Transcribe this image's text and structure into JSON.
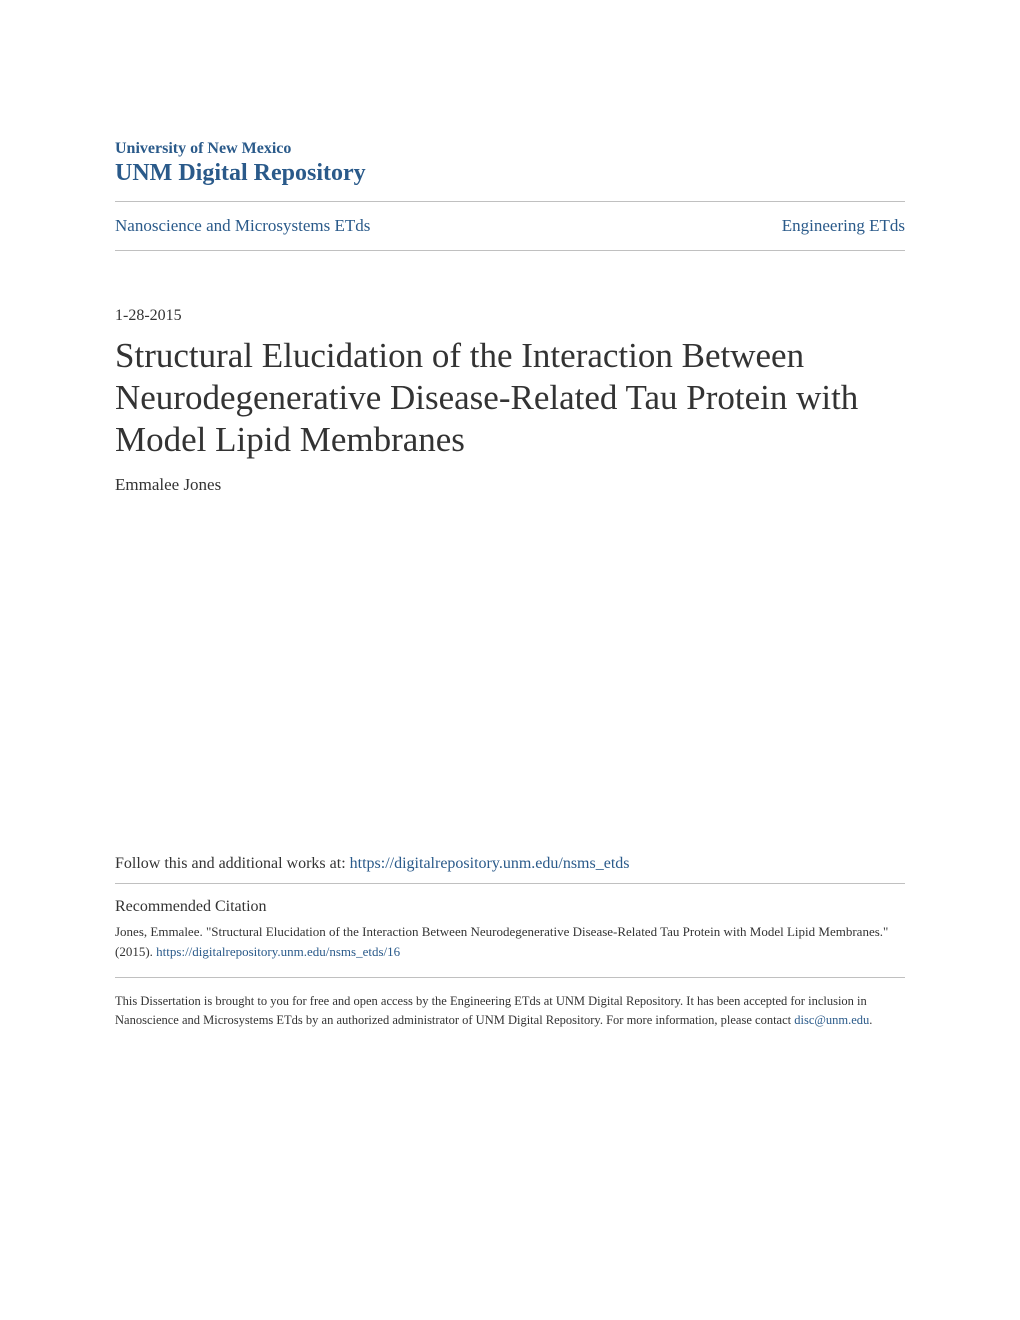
{
  "header": {
    "institution": "University of New Mexico",
    "repository": "UNM Digital Repository"
  },
  "breadcrumb": {
    "left_link": "Nanoscience and Microsystems ETds",
    "right_link": "Engineering ETds"
  },
  "document": {
    "date": "1-28-2015",
    "title": "Structural Elucidation of the Interaction Between Neurodegenerative Disease-Related Tau Protein with Model Lipid Membranes",
    "author": "Emmalee Jones"
  },
  "follow": {
    "prefix": "Follow this and additional works at: ",
    "url": "https://digitalrepository.unm.edu/nsms_etds"
  },
  "citation": {
    "heading": "Recommended Citation",
    "text_prefix": "Jones, Emmalee. \"Structural Elucidation of the Interaction Between Neurodegenerative Disease-Related Tau Protein with Model Lipid Membranes.\" (2015). ",
    "url": "https://digitalrepository.unm.edu/nsms_etds/16"
  },
  "footer": {
    "text_prefix": "This Dissertation is brought to you for free and open access by the Engineering ETds at UNM Digital Repository. It has been accepted for inclusion in Nanoscience and Microsystems ETds by an authorized administrator of UNM Digital Repository. For more information, please contact ",
    "email": "disc@unm.edu",
    "text_suffix": "."
  },
  "colors": {
    "link_color": "#2a5a8a",
    "text_color": "#333333",
    "divider_color": "#c0c0c0",
    "background": "#ffffff"
  }
}
